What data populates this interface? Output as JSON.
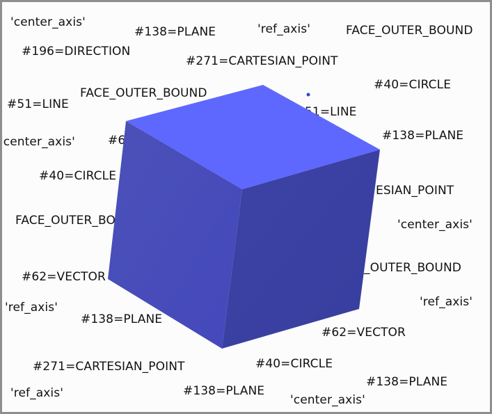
{
  "viewer": {
    "accent_top": "#5e68fe",
    "accent_left": "#4a4fb6",
    "accent_right": "#3a40a3",
    "marker_color": "#3b44c8"
  },
  "labels": [
    {
      "text": "'center_axis'"
    },
    {
      "text": "#138=PLANE"
    },
    {
      "text": "'ref_axis'"
    },
    {
      "text": "FACE_OUTER_BOUND"
    },
    {
      "text": "#196=DIRECTION"
    },
    {
      "text": "#271=CARTESIAN_POINT"
    },
    {
      "text": "#40=CIRCLE"
    },
    {
      "text": "FACE_OUTER_BOUND"
    },
    {
      "text": "#51=LINE"
    },
    {
      "text": "51=LINE"
    },
    {
      "text": "#138=PLANE"
    },
    {
      "text": "'center_axis'"
    },
    {
      "text": "#6"
    },
    {
      "text": "#40=CIRCLE"
    },
    {
      "text": "ESIAN_POINT"
    },
    {
      "text": "FACE_OUTER_BO"
    },
    {
      "text": "'center_axis'"
    },
    {
      "text": "#62=VECTOR"
    },
    {
      "text": "_OUTER_BOUND"
    },
    {
      "text": "'ref_axis'"
    },
    {
      "text": "'ref_axis'"
    },
    {
      "text": "#138=PLANE"
    },
    {
      "text": "#62=VECTOR"
    },
    {
      "text": "#271=CARTESIAN_POINT"
    },
    {
      "text": "#40=CIRCLE"
    },
    {
      "text": "#138=PLANE"
    },
    {
      "text": "'ref_axis'"
    },
    {
      "text": "#138=PLANE"
    },
    {
      "text": "'center_axis'"
    }
  ]
}
